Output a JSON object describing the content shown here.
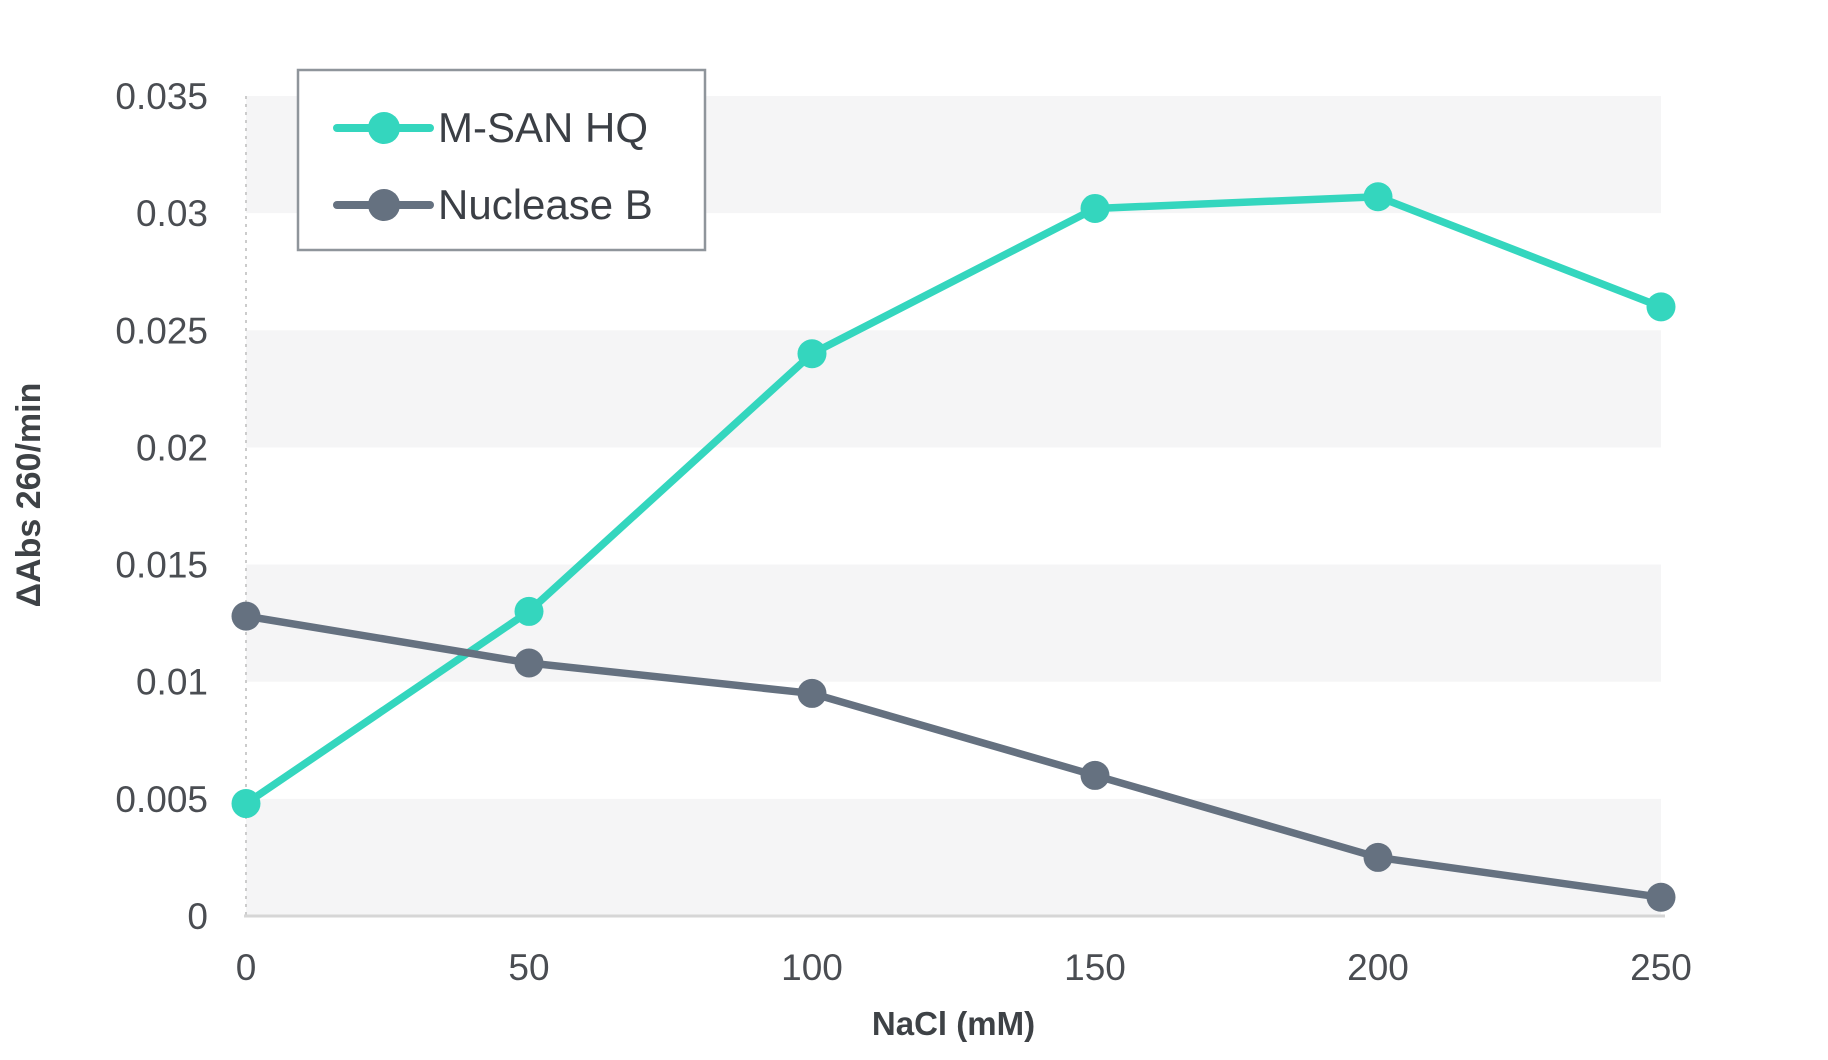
{
  "chart_data": {
    "type": "line",
    "title": "",
    "xlabel": "NaCl (mM)",
    "ylabel": "ΔAbs 260/min",
    "x": [
      0,
      50,
      100,
      150,
      200,
      250
    ],
    "xtick_labels": [
      "0",
      "50",
      "100",
      "150",
      "200",
      "250"
    ],
    "xlim": [
      0,
      250
    ],
    "ylim": [
      0,
      0.035
    ],
    "ytick_step": 0.005,
    "ytick_labels": [
      "0",
      "0.005",
      "0.01",
      "0.015",
      "0.02",
      "0.025",
      "0.03",
      "0.035"
    ],
    "grid": "alternating horizontal bands, striped every 0.005",
    "legend_position": "top-left",
    "series": [
      {
        "name": "M-SAN HQ",
        "color": "#34d6be",
        "values": [
          0.0048,
          0.013,
          0.024,
          0.0302,
          0.0307,
          0.026
        ]
      },
      {
        "name": "Nuclease B",
        "color": "#657180",
        "values": [
          0.0128,
          0.0108,
          0.0095,
          0.006,
          0.0025,
          0.0008
        ]
      }
    ]
  },
  "colors": {
    "background": "#ffffff",
    "band_fill": "#f5f5f6",
    "x_axis_line": "#d6d6d6",
    "y_axis_dashed_line": "#cccccc",
    "legend_border": "#8f959b",
    "legend_fill": "#ffffff"
  }
}
